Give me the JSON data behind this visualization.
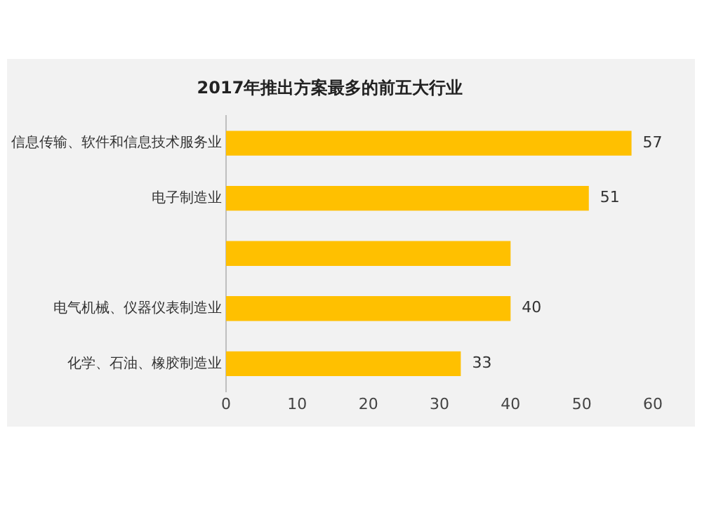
{
  "chart_data": {
    "type": "bar",
    "orientation": "horizontal",
    "title": "2017年推出方案最多的前五大行业",
    "categories": [
      "信息传输、软件和信息技术服务业",
      "电子制造业",
      null,
      "电气机械、仪器仪表制造业",
      "化学、石油、橡胶制造业"
    ],
    "values": [
      57,
      51,
      40,
      40,
      33
    ],
    "value_labels": [
      "57",
      "51",
      null,
      "40",
      "33"
    ],
    "color": "#ffc000",
    "xlim": [
      0,
      60
    ],
    "xticks": [
      0,
      10,
      20,
      30,
      40,
      50,
      60
    ],
    "grid": false,
    "legend": false
  }
}
